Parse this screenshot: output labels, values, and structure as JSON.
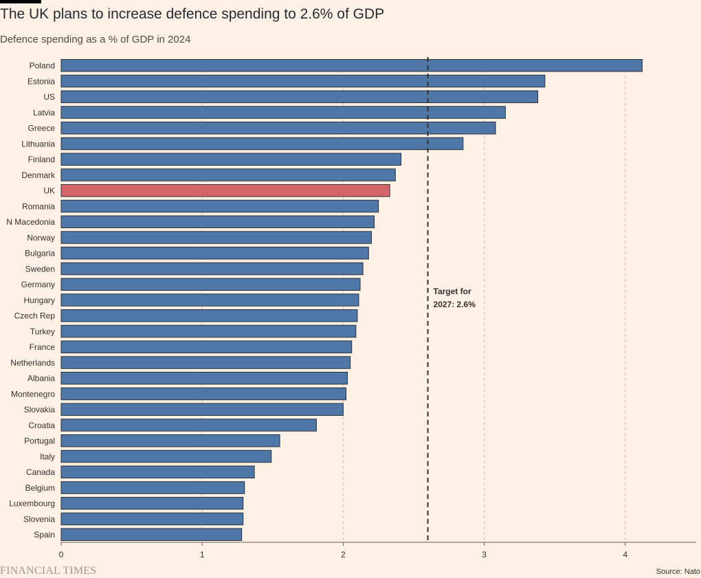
{
  "header": {
    "title": "The UK plans to increase defence spending to 2.6% of GDP",
    "subtitle": "Defence spending as a % of GDP in 2024"
  },
  "footer": {
    "brand": "FINANCIAL TIMES",
    "source": "Source: Nato"
  },
  "colors": {
    "background": "#fdf1e6",
    "bar": "#4f78a9",
    "highlight": "#d4656b",
    "bar_stroke": "#2b2f38",
    "target_line": "#33302e"
  },
  "chart_data": {
    "type": "bar",
    "orientation": "horizontal",
    "title": "The UK plans to increase defence spending to 2.6% of GDP",
    "subtitle": "Defence spending as a % of GDP in 2024",
    "xlabel": "",
    "ylabel": "",
    "xlim": [
      0,
      4.5
    ],
    "xticks": [
      0,
      1,
      2,
      3,
      4
    ],
    "grid": true,
    "highlight": "UK",
    "categories": [
      "Poland",
      "Estonia",
      "US",
      "Latvia",
      "Greece",
      "Lithuania",
      "Finland",
      "Denmark",
      "UK",
      "Romania",
      "N Macedonia",
      "Norway",
      "Bulgaria",
      "Sweden",
      "Germany",
      "Hungary",
      "Czech Rep",
      "Turkey",
      "France",
      "Netherlands",
      "Albania",
      "Montenegro",
      "Slovakia",
      "Croatia",
      "Portugal",
      "Italy",
      "Canada",
      "Belgium",
      "Luxembourg",
      "Slovenia",
      "Spain"
    ],
    "values": [
      4.12,
      3.43,
      3.38,
      3.15,
      3.08,
      2.85,
      2.41,
      2.37,
      2.33,
      2.25,
      2.22,
      2.2,
      2.18,
      2.14,
      2.12,
      2.11,
      2.1,
      2.09,
      2.06,
      2.05,
      2.03,
      2.02,
      2.0,
      1.81,
      1.55,
      1.49,
      1.37,
      1.3,
      1.29,
      1.29,
      1.28
    ],
    "reference_line": {
      "value": 2.6,
      "label_lines": [
        "Target for",
        "2027: 2.6%"
      ]
    }
  }
}
